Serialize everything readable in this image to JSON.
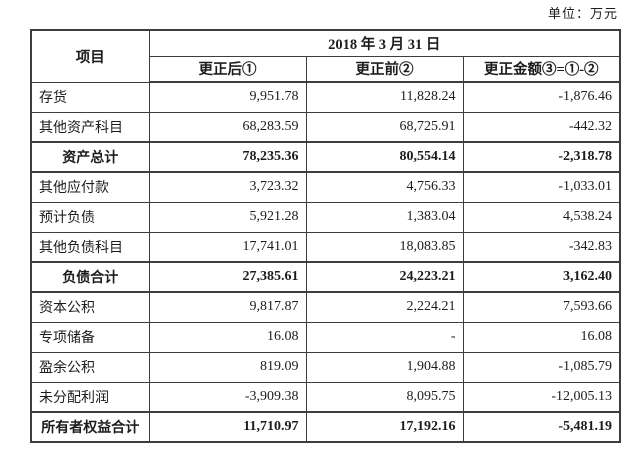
{
  "unit_label": "单位：万元",
  "table": {
    "header": {
      "item_col": "项目",
      "date": "2018 年 3 月 31 日",
      "sub_cols": [
        "更正后①",
        "更正前②",
        "更正金额③=①-②"
      ]
    },
    "rows": [
      {
        "label": "存货",
        "after": "9,951.78",
        "before": "11,828.24",
        "diff": "-1,876.46",
        "is_total": false
      },
      {
        "label": "其他资产科目",
        "after": "68,283.59",
        "before": "68,725.91",
        "diff": "-442.32",
        "is_total": false
      },
      {
        "label": "资产总计",
        "after": "78,235.36",
        "before": "80,554.14",
        "diff": "-2,318.78",
        "is_total": true
      },
      {
        "label": "其他应付款",
        "after": "3,723.32",
        "before": "4,756.33",
        "diff": "-1,033.01",
        "is_total": false
      },
      {
        "label": "预计负债",
        "after": "5,921.28",
        "before": "1,383.04",
        "diff": "4,538.24",
        "is_total": false
      },
      {
        "label": "其他负债科目",
        "after": "17,741.01",
        "before": "18,083.85",
        "diff": "-342.83",
        "is_total": false
      },
      {
        "label": "负债合计",
        "after": "27,385.61",
        "before": "24,223.21",
        "diff": "3,162.40",
        "is_total": true
      },
      {
        "label": "资本公积",
        "after": "9,817.87",
        "before": "2,224.21",
        "diff": "7,593.66",
        "is_total": false
      },
      {
        "label": "专项储备",
        "after": "16.08",
        "before": "-",
        "diff": "16.08",
        "is_total": false
      },
      {
        "label": "盈余公积",
        "after": "819.09",
        "before": "1,904.88",
        "diff": "-1,085.79",
        "is_total": false
      },
      {
        "label": "未分配利润",
        "after": "-3,909.38",
        "before": "8,095.75",
        "diff": "-12,005.13",
        "is_total": false
      },
      {
        "label": "所有者权益合计",
        "after": "11,710.97",
        "before": "17,192.16",
        "diff": "-5,481.19",
        "is_total": true
      }
    ]
  },
  "colors": {
    "border": "#3d3d3d",
    "text": "#1c1c1c",
    "background": "#ffffff"
  }
}
